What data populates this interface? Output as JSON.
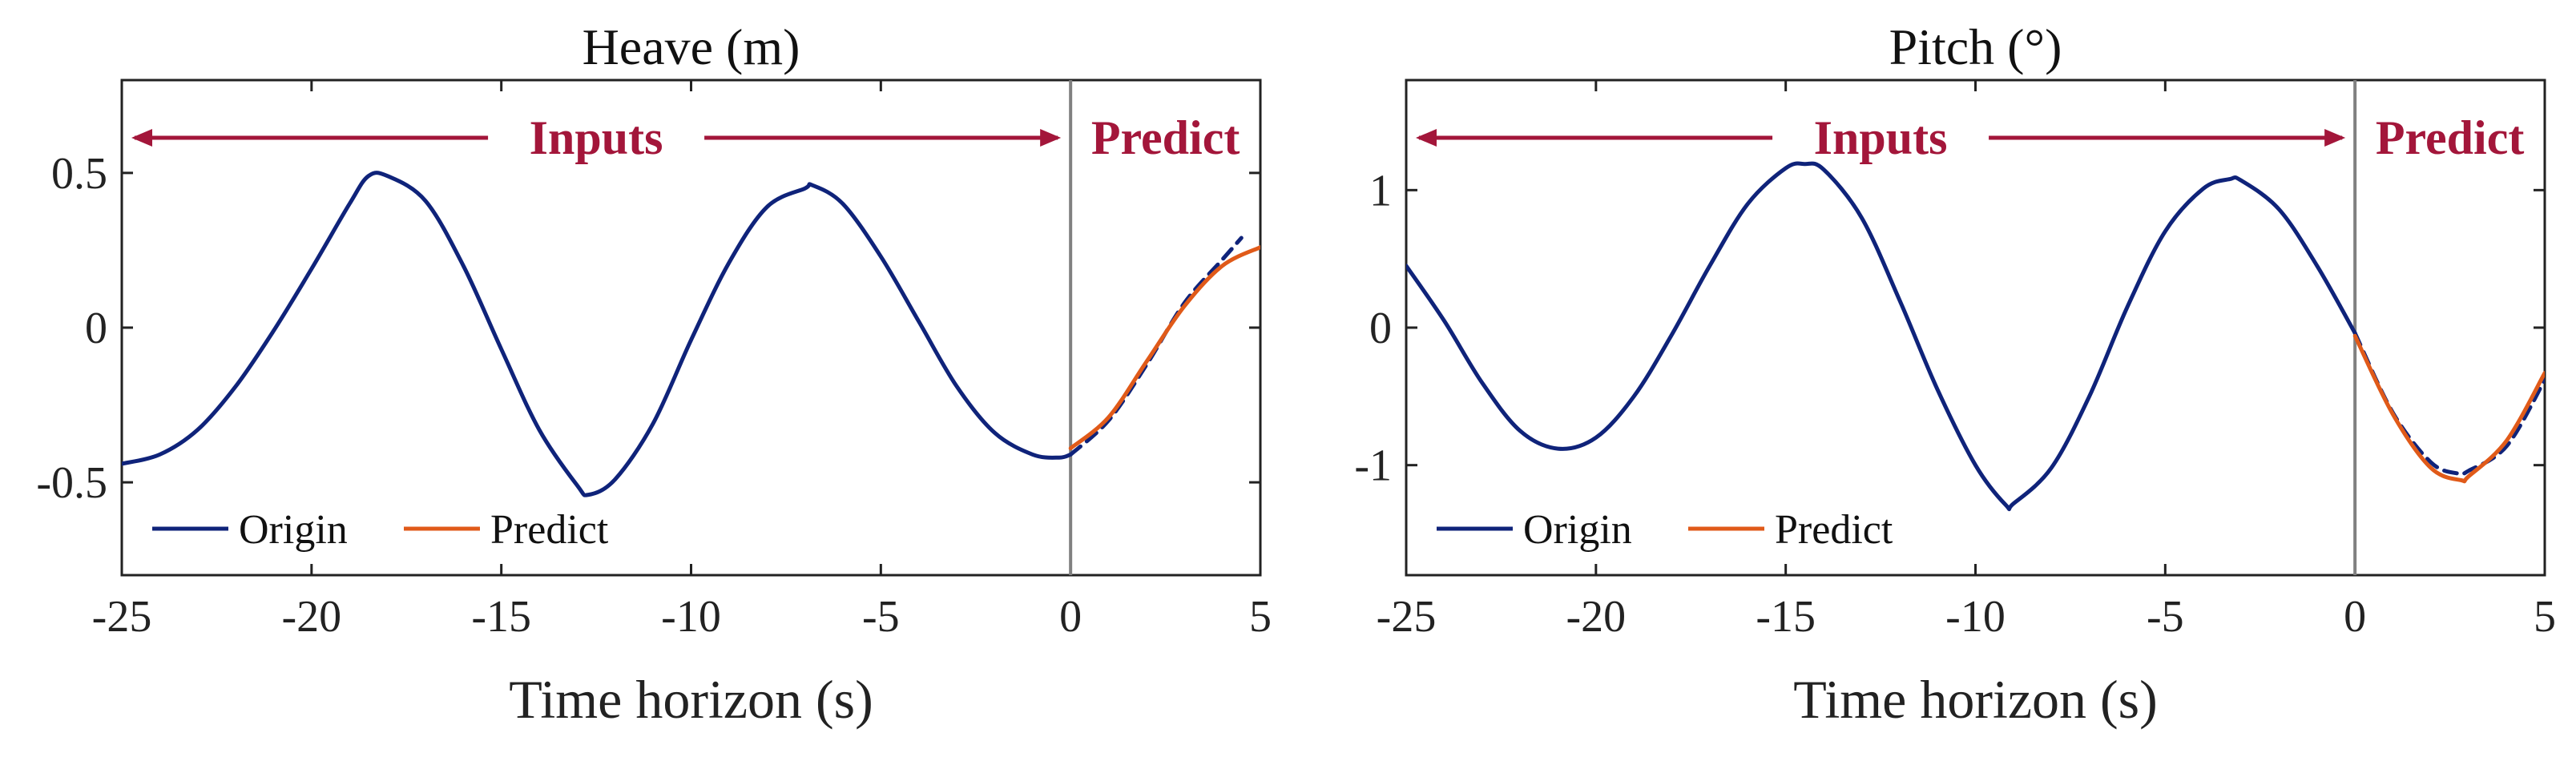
{
  "colors": {
    "origin": "#0f237a",
    "predict": "#e05a19",
    "annotation": "#a3163a",
    "axis": "#222222",
    "divider": "#808080"
  },
  "chart_data": [
    {
      "type": "line",
      "title": "Heave (m)",
      "xlabel": "Time horizon (s)",
      "ylabel": "",
      "xlim": [
        -25,
        5
      ],
      "ylim": [
        -0.8,
        0.8
      ],
      "xticks": [
        "-25",
        "-20",
        "-15",
        "-10",
        "-5",
        "0",
        "5"
      ],
      "xtick_values": [
        -25,
        -20,
        -15,
        -10,
        -5,
        0,
        5
      ],
      "yticks": [
        "0.5",
        "0",
        "-0.5"
      ],
      "ytick_values": [
        0.5,
        0,
        -0.5
      ],
      "grid": false,
      "legend": {
        "placement": "bottom-left",
        "entries": [
          "Origin",
          "Predict"
        ]
      },
      "annotations": {
        "inputs": "Inputs",
        "predict": "Predict",
        "divider_x": 0
      },
      "series": [
        {
          "name": "Origin",
          "style": "solid",
          "color": "#0f237a",
          "x": [
            -25,
            -24,
            -23,
            -22,
            -21,
            -20,
            -19,
            -18.5,
            -18,
            -17,
            -16,
            -15,
            -14,
            -13,
            -12.7,
            -12,
            -11,
            -10,
            -9,
            -8,
            -7,
            -6.8,
            -6,
            -5,
            -4,
            -3,
            -2,
            -1,
            -0.3,
            0
          ],
          "y": [
            -0.44,
            -0.41,
            -0.33,
            -0.19,
            -0.01,
            0.19,
            0.4,
            0.49,
            0.49,
            0.41,
            0.2,
            -0.07,
            -0.33,
            -0.51,
            -0.54,
            -0.49,
            -0.31,
            -0.04,
            0.21,
            0.39,
            0.45,
            0.46,
            0.4,
            0.23,
            0.02,
            -0.19,
            -0.34,
            -0.41,
            -0.42,
            -0.41
          ]
        },
        {
          "name": "Origin (future)",
          "style": "dashed",
          "color": "#0f237a",
          "x": [
            0,
            1,
            2,
            3,
            4,
            4.5
          ],
          "y": [
            -0.41,
            -0.3,
            -0.12,
            0.08,
            0.22,
            0.29
          ]
        },
        {
          "name": "Predict",
          "style": "solid",
          "color": "#e05a19",
          "x": [
            0,
            1,
            2,
            3,
            4,
            5
          ],
          "y": [
            -0.39,
            -0.29,
            -0.11,
            0.07,
            0.2,
            0.26
          ]
        }
      ]
    },
    {
      "type": "line",
      "title": "Pitch (°)",
      "xlabel": "Time horizon (s)",
      "ylabel": "",
      "xlim": [
        -25,
        5
      ],
      "ylim": [
        -1.8,
        1.8
      ],
      "xticks": [
        "-25",
        "-20",
        "-15",
        "-10",
        "-5",
        "0",
        "5"
      ],
      "xtick_values": [
        -25,
        -20,
        -15,
        -10,
        -5,
        0,
        5
      ],
      "yticks": [
        "1",
        "0",
        "-1"
      ],
      "ytick_values": [
        1,
        0,
        -1
      ],
      "grid": false,
      "legend": {
        "placement": "bottom-left",
        "entries": [
          "Origin",
          "Predict"
        ]
      },
      "annotations": {
        "inputs": "Inputs",
        "predict": "Predict",
        "divider_x": 0
      },
      "series": [
        {
          "name": "Origin",
          "style": "solid",
          "color": "#0f237a",
          "x": [
            -25,
            -24,
            -23,
            -22,
            -21,
            -20,
            -19,
            -18,
            -17,
            -16,
            -15,
            -14.5,
            -14,
            -13,
            -12,
            -11,
            -10,
            -9.2,
            -9,
            -8,
            -7,
            -6,
            -5,
            -4,
            -3.3,
            -3,
            -2,
            -1,
            0
          ],
          "y": [
            0.45,
            0.05,
            -0.4,
            -0.75,
            -0.88,
            -0.8,
            -0.5,
            -0.05,
            0.45,
            0.9,
            1.16,
            1.19,
            1.15,
            0.8,
            0.2,
            -0.45,
            -1.0,
            -1.29,
            -1.28,
            -1.02,
            -0.5,
            0.15,
            0.7,
            1.01,
            1.08,
            1.07,
            0.86,
            0.45,
            -0.04
          ]
        },
        {
          "name": "Origin (future)",
          "style": "dashed",
          "color": "#0f237a",
          "x": [
            0,
            1,
            2,
            2.7,
            3,
            4,
            5
          ],
          "y": [
            -0.04,
            -0.62,
            -0.98,
            -1.06,
            -1.04,
            -0.86,
            -0.38
          ]
        },
        {
          "name": "Predict",
          "style": "solid",
          "color": "#e05a19",
          "x": [
            0,
            1,
            2,
            2.8,
            3,
            4,
            5
          ],
          "y": [
            -0.06,
            -0.63,
            -1.02,
            -1.11,
            -1.08,
            -0.82,
            -0.33
          ]
        }
      ]
    }
  ]
}
